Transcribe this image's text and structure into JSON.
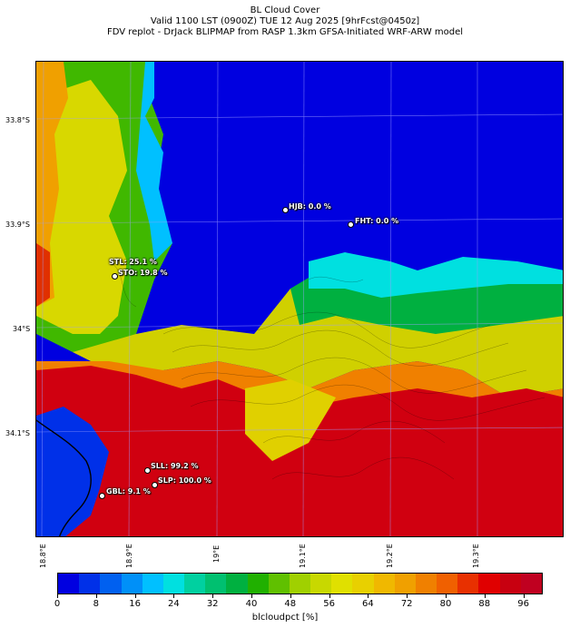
{
  "title": {
    "line1": "BL Cloud Cover",
    "line2": "Valid 1100 LST (0900Z) TUE 12 Aug 2025 [9hrFcst@0450z]",
    "line3": "FDV replot - DrJack BLIPMAP from RASP 1.3km GFSA-Initiated WRF-ARW model"
  },
  "map": {
    "y_labels": [
      "33.8°S",
      "33.9°S",
      "34°S",
      "34.1°S"
    ],
    "x_labels": [
      "18.8°E",
      "18.9°E",
      "19°E",
      "19.1°E",
      "19.2°E",
      "19.3°E"
    ],
    "stations": [
      {
        "label": "HJB: 0.0 %",
        "value": 0.0
      },
      {
        "label": "FHT: 0.0 %",
        "value": 0.0
      },
      {
        "label": "STL: 25.1 %",
        "value": 25.1
      },
      {
        "label": "STO: 19.8 %",
        "value": 19.8
      },
      {
        "label": "SLL: 99.2 %",
        "value": 99.2
      },
      {
        "label": "SLP: 100.0 %",
        "value": 100.0
      },
      {
        "label": "GBL: 9.1 %",
        "value": 9.1
      }
    ]
  },
  "colorbar": {
    "label": "blcloudpct [%]",
    "ticks": [
      "0",
      "8",
      "16",
      "24",
      "32",
      "40",
      "48",
      "56",
      "64",
      "72",
      "80",
      "88",
      "96"
    ],
    "colors": [
      "#0000e0",
      "#0030e8",
      "#0060f0",
      "#0090f8",
      "#00c0ff",
      "#00e0e0",
      "#00d0a0",
      "#00c070",
      "#00b040",
      "#20b000",
      "#60c000",
      "#a0d000",
      "#c8d800",
      "#e0e000",
      "#e8d000",
      "#f0b800",
      "#f0a000",
      "#f08000",
      "#f06000",
      "#e83000",
      "#e00000",
      "#c80010",
      "#c00020"
    ]
  }
}
